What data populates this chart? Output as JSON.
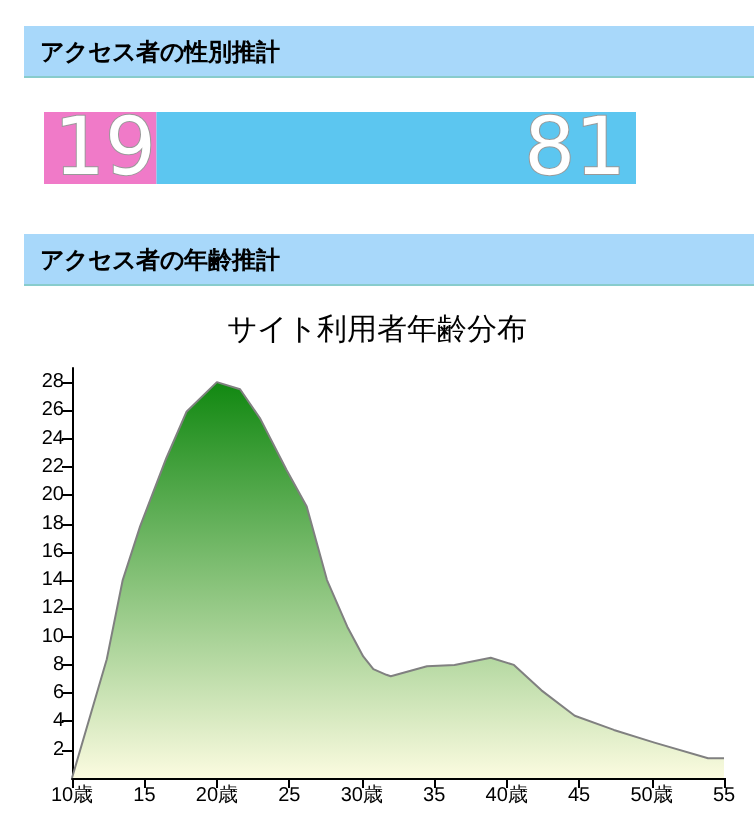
{
  "chart_data": [
    {
      "type": "bar",
      "title": "アクセス者の性別推計",
      "orientation": "horizontal",
      "stacked": true,
      "data_labels": true,
      "tick_labels": false,
      "categories": [
        null
      ],
      "series": [
        {
          "color": "#f07ac8",
          "values": [
            19
          ]
        },
        {
          "color": "#5cc6f0",
          "values": [
            81
          ]
        }
      ]
    },
    {
      "type": "area",
      "title": "アクセス者の年齢推計",
      "subtitle": "サイト利用者年齢分布",
      "xlim": [
        10,
        55
      ],
      "xticks": [
        {
          "value": 10,
          "label": "10歳"
        },
        15,
        {
          "value": 20,
          "label": "20歳"
        },
        25,
        {
          "value": 30,
          "label": "30歳"
        },
        35,
        {
          "value": 40,
          "label": "40歳"
        },
        45,
        {
          "value": 50,
          "label": "50歳"
        },
        55
      ],
      "ylim": [
        0,
        29
      ],
      "yticks": [
        2,
        4,
        6,
        8,
        10,
        12,
        14,
        16,
        18,
        20,
        22,
        24,
        26,
        28
      ],
      "grid": false,
      "series": [
        {
          "color": "#118811",
          "x": [
            10,
            12.4,
            13.5,
            14.7,
            16.5,
            17.9,
            20,
            21.6,
            23,
            24.8,
            26.2,
            27.6,
            29,
            30.1,
            30.8,
            31.7,
            32,
            34.5,
            36.4,
            38.9,
            40.5,
            42.4,
            44.7,
            47.4,
            50.2,
            53.9,
            55
          ],
          "values": [
            0,
            8.4,
            14,
            17.8,
            22.6,
            25.9,
            28,
            27.5,
            25.4,
            21.8,
            19.2,
            14,
            10.7,
            8.6,
            7.7,
            7.3,
            7.2,
            7.9,
            8,
            8.5,
            8,
            6.2,
            4.4,
            3.4,
            2.5,
            1.4,
            1.4
          ]
        }
      ]
    }
  ]
}
